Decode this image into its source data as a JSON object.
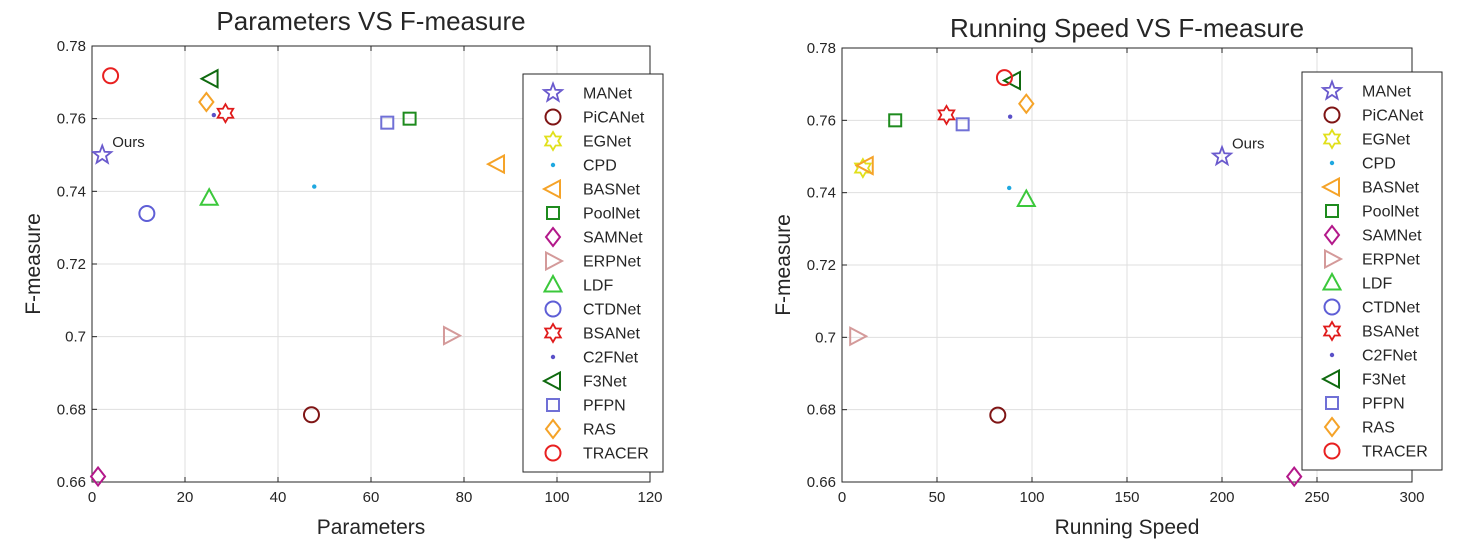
{
  "chart_data": [
    {
      "type": "scatter",
      "title": "Parameters VS F-measure",
      "xlabel": "Parameters",
      "ylabel": "F-measure",
      "xlim": [
        0,
        120
      ],
      "ylim": [
        0.66,
        0.78
      ],
      "xticks": [
        0,
        20,
        40,
        60,
        80,
        100,
        120
      ],
      "yticks": [
        0.66,
        0.68,
        0.7,
        0.72,
        0.74,
        0.76,
        0.78
      ],
      "xtick_labels": [
        "0",
        "20",
        "40",
        "60",
        "80",
        "100",
        "120"
      ],
      "ytick_labels": [
        "0.66",
        "0.68",
        "0.7",
        "0.72",
        "0.74",
        "0.76",
        "0.78"
      ],
      "grid": true,
      "legend_position": "right",
      "annotations": [
        {
          "text": "Ours",
          "x": 2.2,
          "y": 0.75
        }
      ],
      "series": [
        {
          "name": "MANet",
          "x": 2.2,
          "y": 0.75
        },
        {
          "name": "PiCANet",
          "x": 47.2,
          "y": 0.6785
        },
        {
          "name": "EGNet",
          "x": null,
          "y": null
        },
        {
          "name": "CPD",
          "x": 47.8,
          "y": 0.7413
        },
        {
          "name": "BASNet",
          "x": 87.1,
          "y": 0.7475
        },
        {
          "name": "PoolNet",
          "x": 68.3,
          "y": 0.76
        },
        {
          "name": "SAMNet",
          "x": 1.3,
          "y": 0.6615
        },
        {
          "name": "ERPNet",
          "x": 77.2,
          "y": 0.7003
        },
        {
          "name": "LDF",
          "x": 25.2,
          "y": 0.7381
        },
        {
          "name": "CTDNet",
          "x": 11.8,
          "y": 0.7339
        },
        {
          "name": "BSANet",
          "x": 28.7,
          "y": 0.7615
        },
        {
          "name": "C2FNet",
          "x": 26.2,
          "y": 0.761
        },
        {
          "name": "F3Net",
          "x": 25.5,
          "y": 0.771
        },
        {
          "name": "PFPN",
          "x": 63.5,
          "y": 0.7589
        },
        {
          "name": "RAS",
          "x": 24.6,
          "y": 0.7646
        },
        {
          "name": "TRACER",
          "x": 4.0,
          "y": 0.7718
        }
      ]
    },
    {
      "type": "scatter",
      "title": "Running Speed VS F-measure",
      "xlabel": "Running Speed",
      "ylabel": "F-measure",
      "xlim": [
        0,
        300
      ],
      "ylim": [
        0.66,
        0.78
      ],
      "xticks": [
        0,
        50,
        100,
        150,
        200,
        250,
        300
      ],
      "yticks": [
        0.66,
        0.68,
        0.7,
        0.72,
        0.74,
        0.76,
        0.78
      ],
      "xtick_labels": [
        "0",
        "50",
        "100",
        "150",
        "200",
        "250",
        "300"
      ],
      "ytick_labels": [
        "0.66",
        "0.68",
        "0.7",
        "0.72",
        "0.74",
        "0.76",
        "0.78"
      ],
      "grid": true,
      "legend_position": "right",
      "annotations": [
        {
          "text": "Ours",
          "x": 200,
          "y": 0.75
        }
      ],
      "series": [
        {
          "name": "MANet",
          "x": 200,
          "y": 0.75
        },
        {
          "name": "PiCANet",
          "x": 82,
          "y": 0.6785
        },
        {
          "name": "EGNet",
          "x": 11,
          "y": 0.7468
        },
        {
          "name": "CPD",
          "x": 88,
          "y": 0.7413
        },
        {
          "name": "BASNet",
          "x": 12.5,
          "y": 0.7475
        },
        {
          "name": "PoolNet",
          "x": 28,
          "y": 0.76
        },
        {
          "name": "SAMNet",
          "x": 238,
          "y": 0.6615
        },
        {
          "name": "ERPNet",
          "x": 8,
          "y": 0.7003
        },
        {
          "name": "LDF",
          "x": 97,
          "y": 0.7381
        },
        {
          "name": "CTDNet",
          "x": null,
          "y": null
        },
        {
          "name": "BSANet",
          "x": 55,
          "y": 0.7615
        },
        {
          "name": "C2FNet",
          "x": 88.5,
          "y": 0.761
        },
        {
          "name": "F3Net",
          "x": 90,
          "y": 0.771
        },
        {
          "name": "PFPN",
          "x": 63.5,
          "y": 0.7589
        },
        {
          "name": "RAS",
          "x": 97,
          "y": 0.7646
        },
        {
          "name": "TRACER",
          "x": 85.5,
          "y": 0.7718
        }
      ]
    }
  ],
  "legend": {
    "entries": [
      {
        "name": "MANet",
        "marker": "star5",
        "color": "#6a5acd"
      },
      {
        "name": "PiCANet",
        "marker": "circle",
        "color": "#7f1515"
      },
      {
        "name": "EGNet",
        "marker": "hexagram",
        "color": "#e1e01b"
      },
      {
        "name": "CPD",
        "marker": "dot",
        "color": "#1fa8e0"
      },
      {
        "name": "BASNet",
        "marker": "triangle-left",
        "color": "#f5a328"
      },
      {
        "name": "PoolNet",
        "marker": "square",
        "color": "#1e8b1e"
      },
      {
        "name": "SAMNet",
        "marker": "diamond",
        "color": "#b3188a"
      },
      {
        "name": "ERPNet",
        "marker": "triangle-right",
        "color": "#d49a9a"
      },
      {
        "name": "LDF",
        "marker": "triangle-up",
        "color": "#3bc83b"
      },
      {
        "name": "CTDNet",
        "marker": "circle",
        "color": "#5f5fd6"
      },
      {
        "name": "BSANet",
        "marker": "hexagram",
        "color": "#e01b1b"
      },
      {
        "name": "C2FNet",
        "marker": "dot",
        "color": "#5a50c8"
      },
      {
        "name": "F3Net",
        "marker": "triangle-left",
        "color": "#0f6a0f"
      },
      {
        "name": "PFPN",
        "marker": "square",
        "color": "#7070d6"
      },
      {
        "name": "RAS",
        "marker": "diamond",
        "color": "#f5a328"
      },
      {
        "name": "TRACER",
        "marker": "circle",
        "color": "#e82020"
      }
    ]
  }
}
